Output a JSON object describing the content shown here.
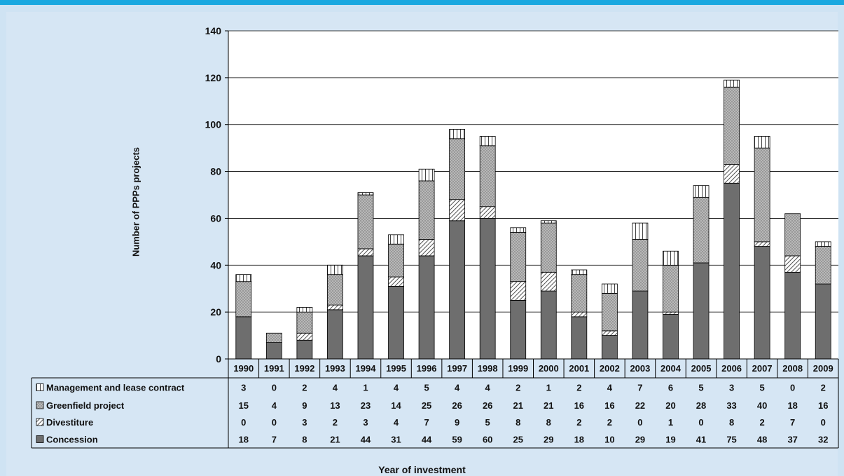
{
  "chart_data": {
    "type": "bar",
    "stacked": true,
    "title": "",
    "xlabel": "Year of investment",
    "ylabel": "Number of PPPs projects",
    "ylim": [
      0,
      140
    ],
    "yticks": [
      0,
      20,
      40,
      60,
      80,
      100,
      120,
      140
    ],
    "grid": true,
    "categories": [
      "1990",
      "1991",
      "1992",
      "1993",
      "1994",
      "1995",
      "1996",
      "1997",
      "1998",
      "1999",
      "2000",
      "2001",
      "2002",
      "2003",
      "2004",
      "2005",
      "2006",
      "2007",
      "2008",
      "2009"
    ],
    "series": [
      {
        "name": "Management and lease contract",
        "pattern": "vertical-lines",
        "values": [
          3,
          0,
          2,
          4,
          1,
          4,
          5,
          4,
          4,
          2,
          1,
          2,
          4,
          7,
          6,
          5,
          3,
          5,
          0,
          2
        ]
      },
      {
        "name": "Greenfield project",
        "pattern": "dots",
        "values": [
          15,
          4,
          9,
          13,
          23,
          14,
          25,
          26,
          26,
          21,
          21,
          16,
          16,
          22,
          20,
          28,
          33,
          40,
          18,
          16
        ]
      },
      {
        "name": "Divestiture",
        "pattern": "diagonal-lines",
        "values": [
          0,
          0,
          3,
          2,
          3,
          4,
          7,
          9,
          5,
          8,
          8,
          2,
          2,
          0,
          1,
          0,
          8,
          2,
          7,
          0
        ]
      },
      {
        "name": "Concession",
        "pattern": "solid",
        "color": "#6e6e6e",
        "values": [
          18,
          7,
          8,
          21,
          44,
          31,
          44,
          59,
          60,
          25,
          29,
          18,
          10,
          29,
          19,
          41,
          75,
          48,
          37,
          32
        ]
      }
    ]
  },
  "colors": {
    "header_bar": "#1aa8e0",
    "background": "#d6e6f4",
    "concession": "#6e6e6e",
    "greenfield": "#b4b4b4"
  }
}
